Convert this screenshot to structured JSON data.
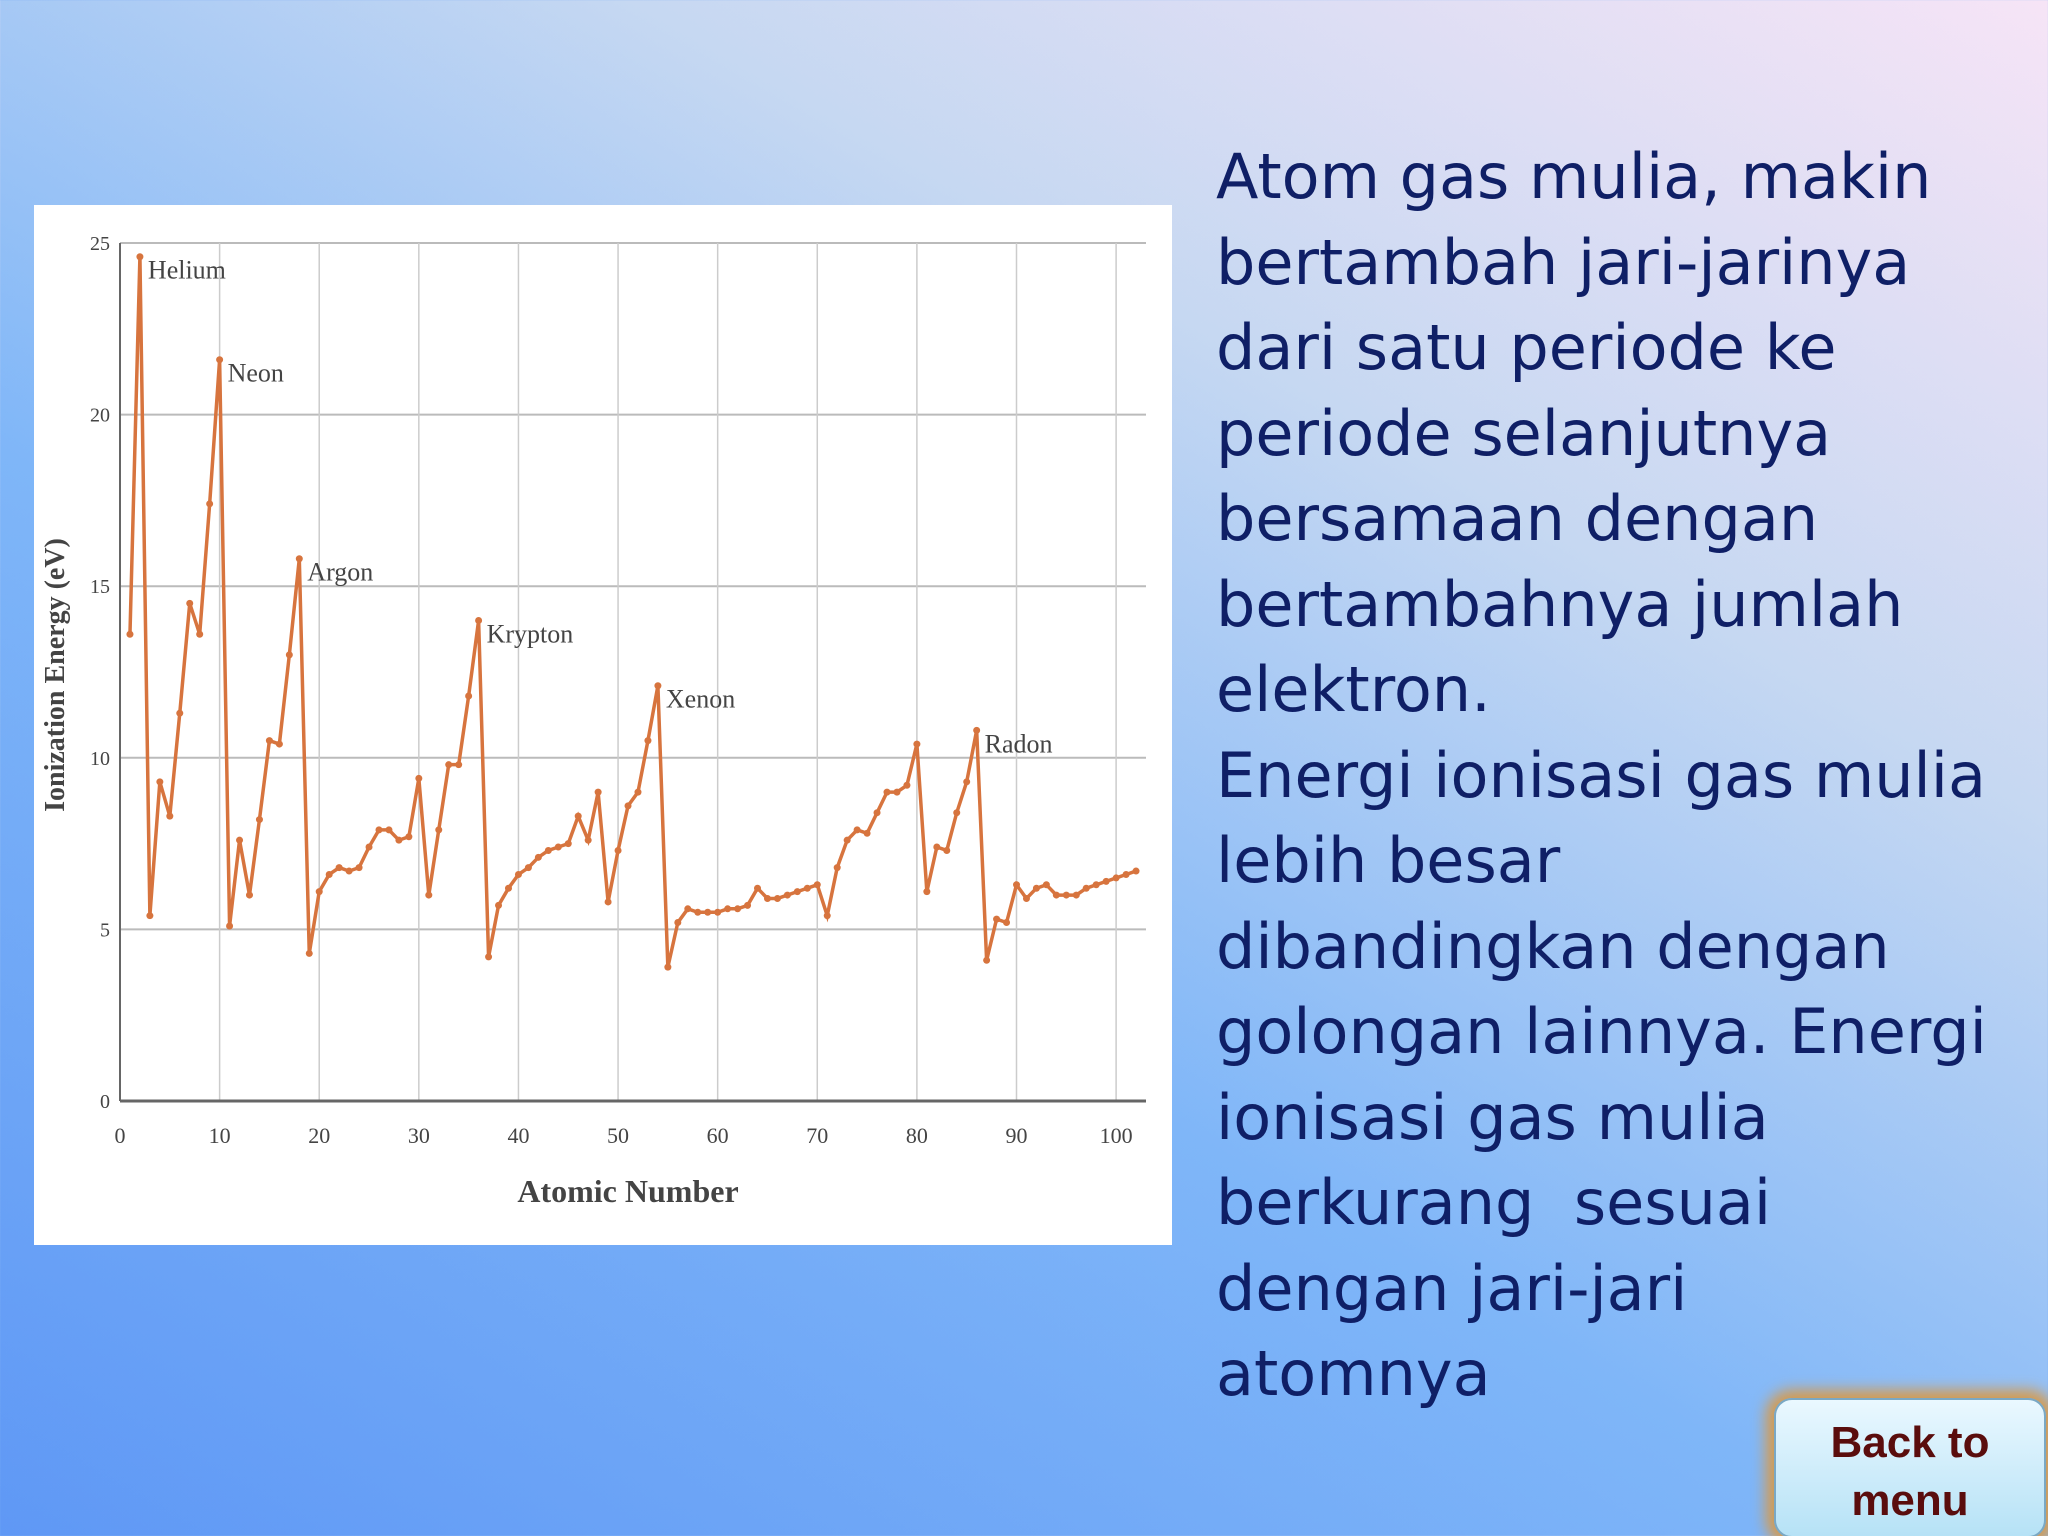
{
  "chart_data": {
    "type": "line",
    "x_label": "Atomic Number",
    "y_label": "Ionization Energy (eV)",
    "x": [
      1,
      2,
      3,
      4,
      5,
      6,
      7,
      8,
      9,
      10,
      11,
      12,
      13,
      14,
      15,
      16,
      17,
      18,
      19,
      20,
      21,
      22,
      23,
      24,
      25,
      26,
      27,
      28,
      29,
      30,
      31,
      32,
      33,
      34,
      35,
      36,
      37,
      38,
      39,
      40,
      41,
      42,
      43,
      44,
      45,
      46,
      47,
      48,
      49,
      50,
      51,
      52,
      53,
      54,
      55,
      56,
      57,
      58,
      59,
      60,
      61,
      62,
      63,
      64,
      65,
      66,
      67,
      68,
      69,
      70,
      71,
      72,
      73,
      74,
      75,
      76,
      77,
      78,
      79,
      80,
      81,
      82,
      83,
      84,
      85,
      86,
      87,
      88,
      89,
      90,
      91,
      92,
      93,
      94,
      95,
      96,
      97,
      98,
      99,
      100,
      101,
      102
    ],
    "values": [
      13.6,
      24.6,
      5.4,
      9.3,
      8.3,
      11.3,
      14.5,
      13.6,
      17.4,
      21.6,
      5.1,
      7.6,
      6.0,
      8.2,
      10.5,
      10.4,
      13.0,
      15.8,
      4.3,
      6.1,
      6.6,
      6.8,
      6.7,
      6.8,
      7.4,
      7.9,
      7.9,
      7.6,
      7.7,
      9.4,
      6.0,
      7.9,
      9.8,
      9.8,
      11.8,
      14.0,
      4.2,
      5.7,
      6.2,
      6.6,
      6.8,
      7.1,
      7.3,
      7.4,
      7.5,
      8.3,
      7.6,
      9.0,
      5.8,
      7.3,
      8.6,
      9.0,
      10.5,
      12.1,
      3.9,
      5.2,
      5.6,
      5.5,
      5.5,
      5.5,
      5.6,
      5.6,
      5.7,
      6.2,
      5.9,
      5.9,
      6.0,
      6.1,
      6.2,
      6.3,
      5.4,
      6.8,
      7.6,
      7.9,
      7.8,
      8.4,
      9.0,
      9.0,
      9.2,
      10.4,
      6.1,
      7.4,
      7.3,
      8.4,
      9.3,
      10.8,
      4.1,
      5.3,
      5.2,
      6.3,
      5.9,
      6.2,
      6.3,
      6.0,
      6.0,
      6.0,
      6.2,
      6.3,
      6.4,
      6.5,
      6.6,
      6.7
    ],
    "color": "#d7743e",
    "xlim": [
      0,
      103
    ],
    "ylim": [
      0,
      25
    ],
    "xticks": [
      0,
      10,
      20,
      30,
      40,
      50,
      60,
      70,
      80,
      90,
      100
    ],
    "yticks": [
      0,
      5,
      10,
      15,
      20,
      25
    ],
    "grid": true,
    "annotations": [
      {
        "text": "Helium",
        "x": 2,
        "y": 24.6
      },
      {
        "text": "Neon",
        "x": 10,
        "y": 21.6
      },
      {
        "text": "Argon",
        "x": 18,
        "y": 15.8
      },
      {
        "text": "Krypton",
        "x": 36,
        "y": 14.0
      },
      {
        "text": "Xenon",
        "x": 54,
        "y": 12.1
      },
      {
        "text": "Radon",
        "x": 86,
        "y": 10.8
      }
    ]
  },
  "slide": {
    "paragraphs": [
      [
        "Atom gas mulia, makin",
        "bertambah jari-jarinya",
        "dari satu periode ke",
        "periode selanjutnya",
        "bersamaan dengan",
        "bertambahnya jumlah",
        "elektron."
      ],
      [
        "Energi ionisasi gas mulia",
        "lebih besar",
        "dibandingkan dengan",
        "golongan lainnya. Energi",
        "ionisasi gas mulia",
        "berkurang  sesuai",
        "dengan jari-jari",
        "atomnya"
      ]
    ],
    "button": "Back to menu"
  }
}
